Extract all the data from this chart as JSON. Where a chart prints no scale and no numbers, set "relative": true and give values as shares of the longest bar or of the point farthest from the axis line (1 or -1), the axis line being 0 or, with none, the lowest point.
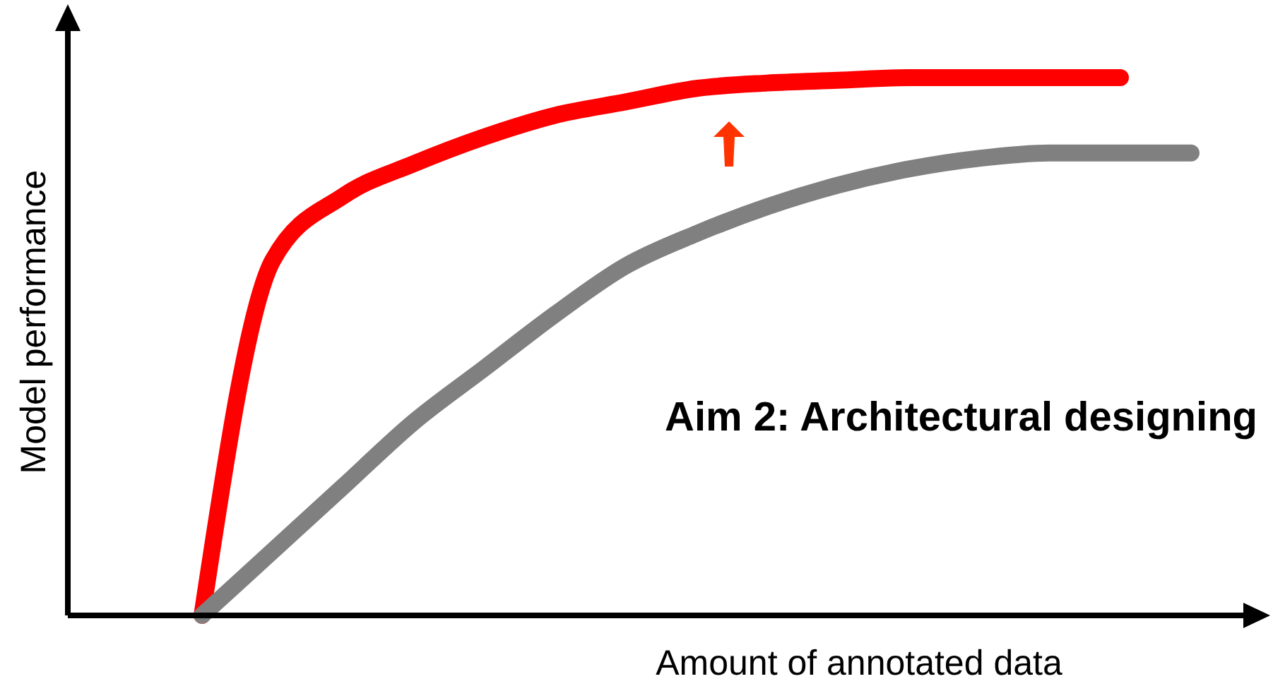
{
  "chart_data": {
    "type": "line",
    "relative": true,
    "xlabel": "Amount of annotated data",
    "ylabel": "Model performance",
    "annotations": [
      "Aim 2: Architectural designing"
    ],
    "categories": [
      null,
      null,
      null,
      null,
      null,
      null,
      null,
      null,
      null,
      null,
      null,
      null,
      null,
      null,
      null
    ],
    "series": [
      {
        "color": "#ff0000",
        "values": [
          0,
          0.66,
          0.78,
          0.84,
          0.89,
          0.93,
          0.955,
          0.98,
          0.99,
          0.995,
          1,
          1,
          1,
          1,
          null
        ]
      },
      {
        "color": "#808080",
        "values": [
          0,
          0.12,
          0.24,
          0.36,
          0.46,
          0.56,
          0.65,
          0.71,
          0.76,
          0.8,
          0.83,
          0.85,
          0.86,
          0.86,
          0.86
        ]
      }
    ]
  }
}
